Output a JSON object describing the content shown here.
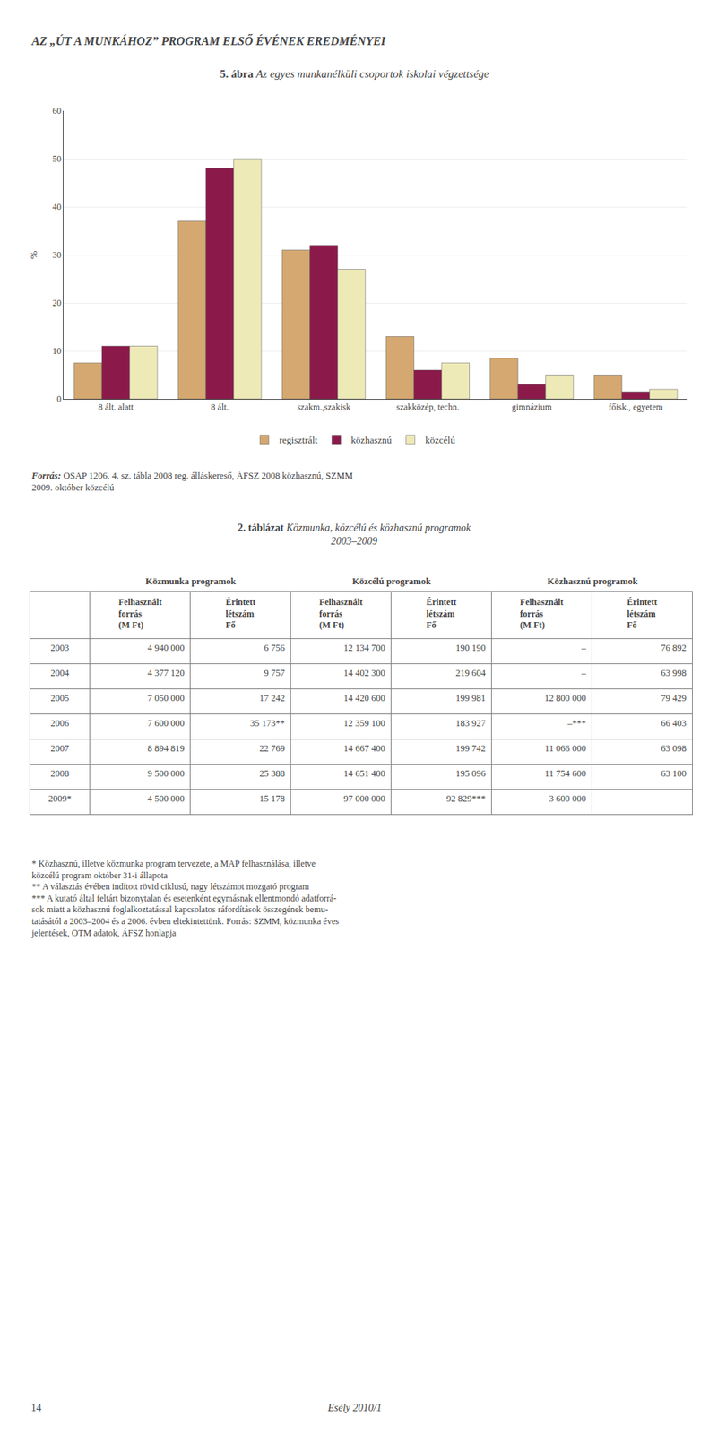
{
  "page_title": "AZ „ÚT A MUNKÁHOZ” PROGRAM ELSŐ ÉVÉNEK EREDMÉNYEI",
  "chart_data": {
    "type": "bar",
    "title_prefix": "5. ábra",
    "title": "Az egyes munkanélküli csoportok iskolai végzettsége",
    "ylabel": "%",
    "categories": [
      "8 ált. alatt",
      "8 ált.",
      "szakm.,szakisk",
      "szakközép, techn.",
      "gimnázium",
      "főisk., egyetem"
    ],
    "series": [
      {
        "name": "regisztrált",
        "color": "#D4A870",
        "values": [
          7.5,
          37.0,
          31.0,
          13.0,
          8.5,
          5.0
        ]
      },
      {
        "name": "közhasznú",
        "color": "#8B1A4A",
        "values": [
          11.0,
          48.0,
          32.0,
          6.0,
          3.0,
          1.5
        ]
      },
      {
        "name": "közcélú",
        "color": "#EEEAB8",
        "values": [
          11.0,
          50.0,
          27.0,
          7.5,
          5.0,
          2.0
        ]
      }
    ],
    "ylim": [
      0,
      60
    ],
    "yticks": [
      0,
      10,
      20,
      30,
      40,
      50,
      60
    ],
    "grid": true,
    "legend": "bottom"
  },
  "source": {
    "label": "Forrás:",
    "text": " OSAP 1206. 4. sz. tábla 2008 reg. álláskereső, ÁFSZ 2008 közhasznú, SZMM\n2009. október közcélú"
  },
  "table": {
    "title_number": "2.",
    "title_label": "táblázat",
    "title_text": "Közmunka, közcélú és közhasznú programok",
    "title_line2": "2003–2009",
    "group_headers": [
      "Közmunka programok",
      "Közcélú programok",
      "Közhasznú programok"
    ],
    "sub_headers": [
      "Felhasznált\nforrás\n(M Ft)",
      "Érintett\nlétszám\nFő",
      "Felhasznált\nforrás\n(M Ft)",
      "Érintett\nlétszám\nFő",
      "Felhasznált\nforrás\n(M Ft)",
      "Érintett\nlétszám\nFő"
    ],
    "rows": [
      [
        "2003",
        "4 940 000",
        "6 756",
        "12 134 700",
        "190 190",
        "–",
        "76 892"
      ],
      [
        "2004",
        "4 377 120",
        "9 757",
        "14 402 300",
        "219 604",
        "–",
        "63 998"
      ],
      [
        "2005",
        "7 050 000",
        "17 242",
        "14 420 600",
        "199 981",
        "12 800 000",
        "79 429"
      ],
      [
        "2006",
        "7 600 000",
        "35 173**",
        "12 359 100",
        "183 927",
        "–***",
        "66 403"
      ],
      [
        "2007",
        "8 894 819",
        "22 769",
        "14 667 400",
        "199 742",
        "11 066 000",
        "63 098"
      ],
      [
        "2008",
        "9 500 000",
        "25 388",
        "14 651 400",
        "195 096",
        "11 754 600",
        "63 100"
      ],
      [
        "2009*",
        "4 500 000",
        "15 178",
        "97 000 000",
        "92 829***",
        "3 600 000",
        null
      ]
    ]
  },
  "footnotes": [
    "* Közhasznú, illetve közmunka program tervezete, a MAP felhasználása, illetve\nközcélú program október 31-i állapota",
    "** A választás évében indított rövid ciklusú, nagy létszámot mozgató program",
    "*** A kutató által feltárt bizonytalan és esetenként egymásnak ellentmondó adatforrá-\nsok miatt a közhasznú foglalkoztatással kapcsolatos ráfordítások összegének bemu-\ntatásától a 2003–2004 és a 2006. évben eltekintettünk. Forrás: SZMM, közmunka éves\njelentések, ÖTM adatok, ÁFSZ honlapja"
  ],
  "page_number": "14",
  "journal_name": "Esély 2010/1"
}
